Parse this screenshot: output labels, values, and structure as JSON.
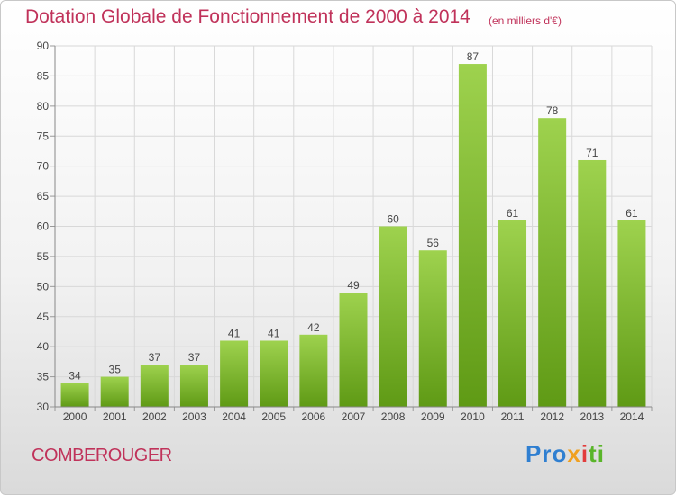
{
  "header": {
    "title": "Dotation Globale de Fonctionnement de 2000 à 2014",
    "unit": "(en milliers d'€)"
  },
  "footer": {
    "commune": "COMBEROUGER",
    "logo_text": "Proxiti",
    "logo_parts": [
      "Pro",
      "x",
      "i",
      "ti"
    ]
  },
  "colors": {
    "title": "#c0325a",
    "bar_light": "#9ed24e",
    "bar_dark": "#5f9a15",
    "grid": "#d8d8d8"
  },
  "chart_data": {
    "type": "bar",
    "title": "Dotation Globale de Fonctionnement de 2000 à 2014",
    "subtitle": "(en milliers d'€)",
    "categories": [
      "2000",
      "2001",
      "2002",
      "2003",
      "2004",
      "2005",
      "2006",
      "2007",
      "2008",
      "2009",
      "2010",
      "2011",
      "2012",
      "2013",
      "2014"
    ],
    "values": [
      34,
      35,
      37,
      37,
      41,
      41,
      42,
      49,
      60,
      56,
      87,
      61,
      78,
      71,
      61
    ],
    "ylim": [
      30,
      90
    ],
    "yticks": [
      30,
      35,
      40,
      45,
      50,
      55,
      60,
      65,
      70,
      75,
      80,
      85,
      90
    ],
    "grid": true,
    "legend": "none"
  }
}
